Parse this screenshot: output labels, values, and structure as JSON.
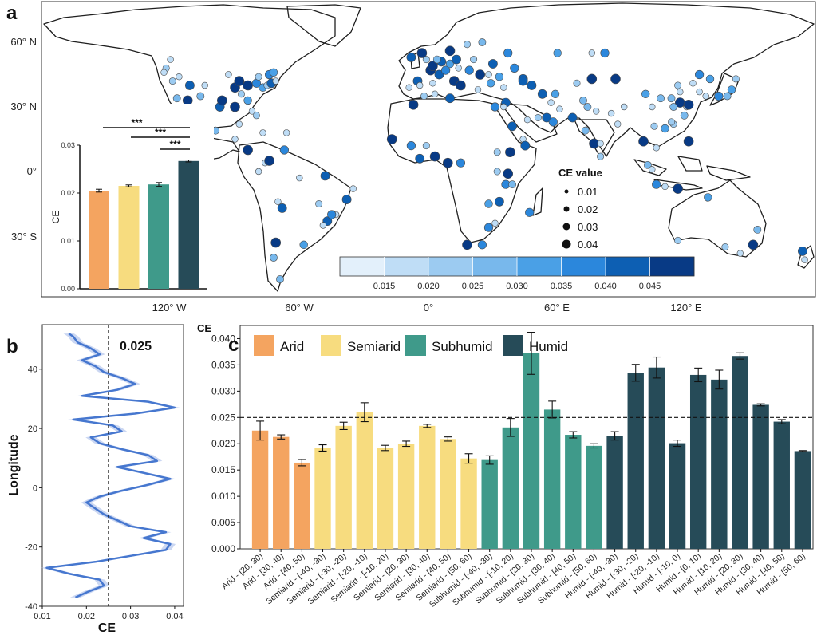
{
  "panel_labels": {
    "a": "a",
    "b": "b",
    "c": "c"
  },
  "colors": {
    "arid": "#f4a460",
    "semiarid": "#f7dc7f",
    "subhumid": "#3f9a8a",
    "humid": "#264b58",
    "line_b": "#4677cf",
    "land_outline": "#1f1f1f"
  },
  "map": {
    "lat_labels": [
      "60° N",
      "30° N",
      "0°",
      "30° S"
    ],
    "lon_labels": [
      "120° W",
      "60° W",
      "0°",
      "60° E",
      "120° E"
    ],
    "size_legend": {
      "title": "CE value",
      "items": [
        "0.01",
        "0.02",
        "0.03",
        "0.04"
      ]
    },
    "colorbar": {
      "colors": [
        "#e3f0fb",
        "#bfddf6",
        "#9ccbf1",
        "#78b8ec",
        "#4aa0e6",
        "#2b87dc",
        "#0d5fb3",
        "#083a85"
      ],
      "ticks": [
        "0.015",
        "0.020",
        "0.025",
        "0.030",
        "0.035",
        "0.040",
        "0.045"
      ]
    },
    "stations": [
      [
        -120,
        52
      ],
      [
        -122,
        48
      ],
      [
        -119,
        42
      ],
      [
        -117,
        34
      ],
      [
        -112,
        33
      ],
      [
        -106,
        35
      ],
      [
        -97,
        30
      ],
      [
        -96,
        33
      ],
      [
        -90,
        30
      ],
      [
        -82,
        28
      ],
      [
        -80,
        26
      ],
      [
        -84,
        33
      ],
      [
        -87,
        36
      ],
      [
        -90,
        39
      ],
      [
        -88,
        42
      ],
      [
        -84,
        40
      ],
      [
        -80,
        41
      ],
      [
        -77,
        39
      ],
      [
        -75,
        40
      ],
      [
        -73,
        41
      ],
      [
        -71,
        42
      ],
      [
        -79,
        44
      ],
      [
        -74,
        45
      ],
      [
        -72,
        46
      ],
      [
        -93,
        45
      ],
      [
        -104,
        40
      ],
      [
        -111,
        40
      ],
      [
        -116,
        44
      ],
      [
        -123,
        46
      ],
      [
        -99,
        19
      ],
      [
        -103,
        21
      ],
      [
        -90,
        15
      ],
      [
        -84,
        10
      ],
      [
        -76,
        4
      ],
      [
        -74,
        5
      ],
      [
        -79,
        0
      ],
      [
        -67,
        10
      ],
      [
        -66,
        18
      ],
      [
        -77,
        18
      ],
      [
        -88,
        22
      ],
      [
        -70,
        -14
      ],
      [
        -68,
        -17
      ],
      [
        -71,
        -33
      ],
      [
        -58,
        -34
      ],
      [
        -47,
        -23
      ],
      [
        -49,
        -25
      ],
      [
        -43,
        -20
      ],
      [
        -38,
        -13
      ],
      [
        -35,
        -8
      ],
      [
        -48,
        -2
      ],
      [
        -60,
        -3
      ],
      [
        -51,
        -15
      ],
      [
        -45,
        -20
      ],
      [
        -72,
        -40
      ],
      [
        -69,
        -50
      ],
      [
        -9,
        39
      ],
      [
        -5,
        42
      ],
      [
        -4,
        40
      ],
      [
        2,
        41
      ],
      [
        1,
        47
      ],
      [
        5,
        45
      ],
      [
        2,
        49
      ],
      [
        8,
        47
      ],
      [
        10,
        50
      ],
      [
        13,
        52
      ],
      [
        14,
        48
      ],
      [
        19,
        47
      ],
      [
        21,
        52
      ],
      [
        24,
        45
      ],
      [
        28,
        45
      ],
      [
        30,
        50
      ],
      [
        37,
        55
      ],
      [
        33,
        44
      ],
      [
        29,
        41
      ],
      [
        35,
        39
      ],
      [
        12,
        42
      ],
      [
        15,
        40
      ],
      [
        23,
        38
      ],
      [
        6,
        51
      ],
      [
        4,
        52
      ],
      [
        10,
        56
      ],
      [
        18,
        59
      ],
      [
        25,
        60
      ],
      [
        -1,
        52
      ],
      [
        -3,
        55
      ],
      [
        -8,
        53
      ],
      [
        40,
        48
      ],
      [
        44,
        43
      ],
      [
        48,
        40
      ],
      [
        36,
        32
      ],
      [
        35,
        30
      ],
      [
        31,
        30
      ],
      [
        39,
        21
      ],
      [
        46,
        24
      ],
      [
        51,
        25
      ],
      [
        55,
        25
      ],
      [
        58,
        23
      ],
      [
        44,
        15
      ],
      [
        45,
        12
      ],
      [
        53,
        36
      ],
      [
        57,
        32
      ],
      [
        59,
        36
      ],
      [
        61,
        29
      ],
      [
        67,
        25
      ],
      [
        72,
        33
      ],
      [
        74,
        30
      ],
      [
        69,
        41
      ],
      [
        76,
        43
      ],
      [
        78,
        28
      ],
      [
        77,
        13
      ],
      [
        80,
        13
      ],
      [
        88,
        22
      ],
      [
        85,
        27
      ],
      [
        80,
        7
      ],
      [
        73,
        19
      ],
      [
        -17,
        15
      ],
      [
        -7,
        31
      ],
      [
        -2,
        35
      ],
      [
        3,
        36
      ],
      [
        10,
        34
      ],
      [
        -8,
        12
      ],
      [
        -1,
        12
      ],
      [
        3,
        7
      ],
      [
        -4,
        6
      ],
      [
        9,
        4
      ],
      [
        15,
        4
      ],
      [
        32,
        0
      ],
      [
        37,
        -1
      ],
      [
        36,
        -6
      ],
      [
        39,
        -6
      ],
      [
        33,
        -14
      ],
      [
        28,
        -15
      ],
      [
        31,
        -24
      ],
      [
        28,
        -26
      ],
      [
        18,
        -34
      ],
      [
        25,
        -34
      ],
      [
        47,
        -19
      ],
      [
        32,
        9
      ],
      [
        38,
        9
      ],
      [
        44,
        42
      ],
      [
        60,
        55
      ],
      [
        76,
        55
      ],
      [
        82,
        55
      ],
      [
        100,
        14
      ],
      [
        102,
        3
      ],
      [
        104,
        1
      ],
      [
        106,
        -6
      ],
      [
        110,
        -7
      ],
      [
        116,
        -8
      ],
      [
        121,
        14
      ],
      [
        114,
        22
      ],
      [
        113,
        23
      ],
      [
        110,
        20
      ],
      [
        105,
        21
      ],
      [
        106,
        11
      ],
      [
        120,
        30
      ],
      [
        117,
        32
      ],
      [
        114,
        30
      ],
      [
        113,
        34
      ],
      [
        117,
        37
      ],
      [
        116,
        40
      ],
      [
        123,
        41
      ],
      [
        126,
        45
      ],
      [
        121,
        31
      ],
      [
        119,
        26
      ],
      [
        108,
        34
      ],
      [
        104,
        30
      ],
      [
        126,
        37
      ],
      [
        129,
        35
      ],
      [
        135,
        35
      ],
      [
        139,
        35
      ],
      [
        141,
        38
      ],
      [
        143,
        43
      ],
      [
        87,
        43
      ],
      [
        101,
        36
      ],
      [
        91,
        30
      ],
      [
        153,
        -27
      ],
      [
        151,
        -34
      ],
      [
        145,
        -38
      ],
      [
        138,
        -35
      ],
      [
        116,
        -32
      ],
      [
        130,
        -12
      ],
      [
        174,
        -37
      ],
      [
        175,
        -41
      ],
      [
        131,
        43
      ]
    ],
    "inset": {
      "ylabel": "CE",
      "yticks": [
        "0.00",
        "0.01",
        "0.02",
        "0.03"
      ],
      "values": [
        0.0205,
        0.0215,
        0.0218,
        0.0267
      ],
      "errors": [
        0.0003,
        0.0002,
        0.0004,
        0.0002
      ],
      "sig": [
        "***",
        "***",
        "***"
      ]
    }
  },
  "chart_data": [
    {
      "type": "line",
      "panel": "b",
      "xlabel": "CE",
      "ylabel": "Longitude",
      "xlim": [
        0.01,
        0.042
      ],
      "ylim": [
        -40,
        55
      ],
      "xticks": [
        "0.01",
        "0.02",
        "0.03",
        "0.04"
      ],
      "yticks": [
        "-40",
        "-20",
        "0",
        "20",
        "40"
      ],
      "reference_line": 0.025,
      "reference_label": "0.025",
      "y": [
        -37,
        -35,
        -33,
        -31,
        -29,
        -27,
        -25,
        -23,
        -21,
        -19,
        -17,
        -15,
        -13,
        -11,
        -9,
        -7,
        -5,
        -3,
        -1,
        1,
        3,
        5,
        7,
        9,
        11,
        13,
        15,
        17,
        19,
        21,
        23,
        25,
        27,
        29,
        31,
        33,
        35,
        37,
        39,
        41,
        43,
        45,
        47,
        49,
        51,
        52
      ],
      "x": [
        0.0175,
        0.0205,
        0.024,
        0.023,
        0.016,
        0.011,
        0.022,
        0.03,
        0.038,
        0.039,
        0.033,
        0.038,
        0.03,
        0.027,
        0.024,
        0.022,
        0.02,
        0.023,
        0.028,
        0.034,
        0.039,
        0.033,
        0.027,
        0.036,
        0.034,
        0.028,
        0.023,
        0.021,
        0.028,
        0.026,
        0.017,
        0.031,
        0.04,
        0.034,
        0.019,
        0.027,
        0.031,
        0.028,
        0.024,
        0.022,
        0.019,
        0.023,
        0.021,
        0.018,
        0.017,
        0.016
      ]
    },
    {
      "type": "bar",
      "panel": "c",
      "ylabel": "CE",
      "ylim": [
        0,
        0.0425
      ],
      "yticks": [
        "0.000",
        "0.005",
        "0.010",
        "0.015",
        "0.020",
        "0.025",
        "0.030",
        "0.035",
        "0.040"
      ],
      "reference_line": 0.025,
      "legend": [
        "Arid",
        "Semiarid",
        "Subhumid",
        "Humid"
      ],
      "categories": [
        "Arid - [20, 30)",
        "Arid - [30, 40)",
        "Arid - [40, 50)",
        "Semiarid - [-40, -30)",
        "Semiarid - [-30, -20)",
        "Semiarid - [-20, -10)",
        "Semiarid - [-10, 20)",
        "Semiarid - [20, 30)",
        "Semiarid - [30, 40)",
        "Semiarid - [40, 50)",
        "Semiarid - [50, 60)",
        "Subhumid - [-40, -30)",
        "Subhumid - [-10, 20)",
        "Subhumid - [20, 30)",
        "Subhumid - [30, 40)",
        "Subhumid - [40, 50)",
        "Subhumid - [50, 60)",
        "Humid - [-40, -30)",
        "Humid - [-30, -20)",
        "Humid - [-20, -10)",
        "Humid - [-10, 0)",
        "Humid - [0, 10)",
        "Humid - [10, 20)",
        "Humid - [20, 30)",
        "Humid - [30, 40)",
        "Humid - [40, 50)",
        "Humid - [50, 60)"
      ],
      "group": [
        0,
        0,
        0,
        1,
        1,
        1,
        1,
        1,
        1,
        1,
        1,
        2,
        2,
        2,
        2,
        2,
        2,
        3,
        3,
        3,
        3,
        3,
        3,
        3,
        3,
        3,
        3
      ],
      "values": [
        0.0225,
        0.0213,
        0.0164,
        0.0192,
        0.0234,
        0.026,
        0.0192,
        0.02,
        0.0234,
        0.0209,
        0.0172,
        0.0169,
        0.0231,
        0.0372,
        0.0265,
        0.0217,
        0.0196,
        0.0215,
        0.0335,
        0.0345,
        0.0201,
        0.0331,
        0.0322,
        0.0367,
        0.0274,
        0.0242,
        0.0186
      ],
      "errors": [
        0.0018,
        0.0004,
        0.0006,
        0.0006,
        0.0007,
        0.0018,
        0.0005,
        0.0005,
        0.0003,
        0.0004,
        0.0009,
        0.0008,
        0.0017,
        0.004,
        0.0016,
        0.0006,
        0.0004,
        0.0008,
        0.0016,
        0.002,
        0.0006,
        0.0013,
        0.0018,
        0.0006,
        0.0002,
        0.0004,
        0.0001
      ]
    }
  ]
}
